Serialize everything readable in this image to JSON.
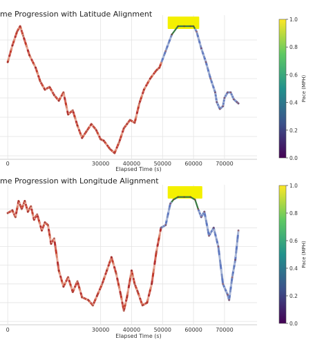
{
  "chart_data": [
    {
      "type": "line",
      "title": "me Progression with Latitude Alignment",
      "xlabel": "Elapsed Time (s)",
      "xlim": [
        -2500,
        80500
      ],
      "ylim": [
        0,
        100
      ],
      "xticks": [
        0,
        30000,
        40000,
        50000,
        60000,
        70000
      ],
      "colorbar": {
        "label": "Pace (MPH)",
        "range": [
          0.0,
          1.0
        ],
        "ticks": [
          "0.0",
          "0.2",
          "0.4",
          "0.6",
          "0.8",
          "1.0"
        ]
      },
      "highlight": {
        "x_start": 53000,
        "x_end": 60500,
        "color": "#f4f000"
      },
      "series": [
        {
          "x": [
            0,
            1500,
            3000,
            4000,
            5000,
            7000,
            9000,
            10500,
            12000,
            13500,
            15000,
            16500,
            18000,
            19500,
            21000,
            22500,
            24000,
            25500,
            27000,
            28500,
            30000,
            31000,
            33000,
            34500,
            36000,
            37500,
            38500,
            39500,
            41000,
            42500,
            44000,
            46000,
            48000,
            49000,
            51000,
            53000,
            55000,
            57000,
            59000,
            60000,
            61000,
            62500,
            64000,
            65500,
            67000,
            67500,
            68500,
            69500,
            70000,
            71000,
            72000,
            73000,
            74000,
            74500
          ],
          "y": [
            70,
            82,
            92,
            96,
            89,
            75,
            66,
            56,
            50,
            52,
            46,
            42,
            48,
            32,
            35,
            24,
            15,
            20,
            25,
            21,
            14,
            13,
            7,
            4,
            12,
            22,
            25,
            28,
            26,
            40,
            50,
            58,
            64,
            66,
            78,
            90,
            96,
            96,
            96,
            96,
            92,
            80,
            70,
            58,
            48,
            41,
            36,
            38,
            44,
            48,
            48,
            43,
            41,
            40
          ]
        }
      ]
    },
    {
      "type": "line",
      "title": "me Progression with Longitude Alignment",
      "xlabel": "Elapsed Time (s)",
      "xlim": [
        -2500,
        80500
      ],
      "ylim": [
        0,
        100
      ],
      "xticks": [
        0,
        30000,
        40000,
        50000,
        60000,
        70000
      ],
      "colorbar": {
        "label": "Pace (MPH)",
        "range": [
          0.0,
          1.0
        ],
        "ticks": [
          "0.0",
          "0.2",
          "0.4",
          "0.6",
          "0.8",
          "1.0"
        ]
      },
      "highlight": {
        "x_start": 53000,
        "x_end": 61500,
        "color": "#f4f000"
      },
      "series": [
        {
          "x": [
            0,
            1500,
            2500,
            3500,
            4500,
            5500,
            6500,
            7500,
            8500,
            9500,
            11000,
            12000,
            13000,
            14000,
            15000,
            16500,
            18000,
            19500,
            21000,
            22500,
            24000,
            26000,
            27500,
            29000,
            30500,
            32000,
            33500,
            35000,
            36500,
            37500,
            38500,
            40000,
            41000,
            42000,
            43500,
            45000,
            46500,
            48000,
            49500,
            51000,
            52500,
            53500,
            55000,
            57000,
            59000,
            60500,
            61500,
            62500,
            63500,
            65000,
            66500,
            68000,
            69500,
            71000,
            71500,
            72500,
            73500,
            74500
          ],
          "y": [
            83,
            85,
            80,
            92,
            86,
            92,
            84,
            88,
            78,
            82,
            70,
            76,
            74,
            60,
            64,
            40,
            28,
            35,
            24,
            32,
            20,
            18,
            14,
            22,
            30,
            40,
            50,
            38,
            22,
            10,
            20,
            40,
            30,
            24,
            14,
            16,
            30,
            54,
            72,
            74,
            90,
            93,
            95,
            95,
            95,
            93,
            86,
            80,
            84,
            66,
            72,
            58,
            30,
            22,
            18,
            35,
            48,
            70
          ]
        }
      ]
    }
  ]
}
